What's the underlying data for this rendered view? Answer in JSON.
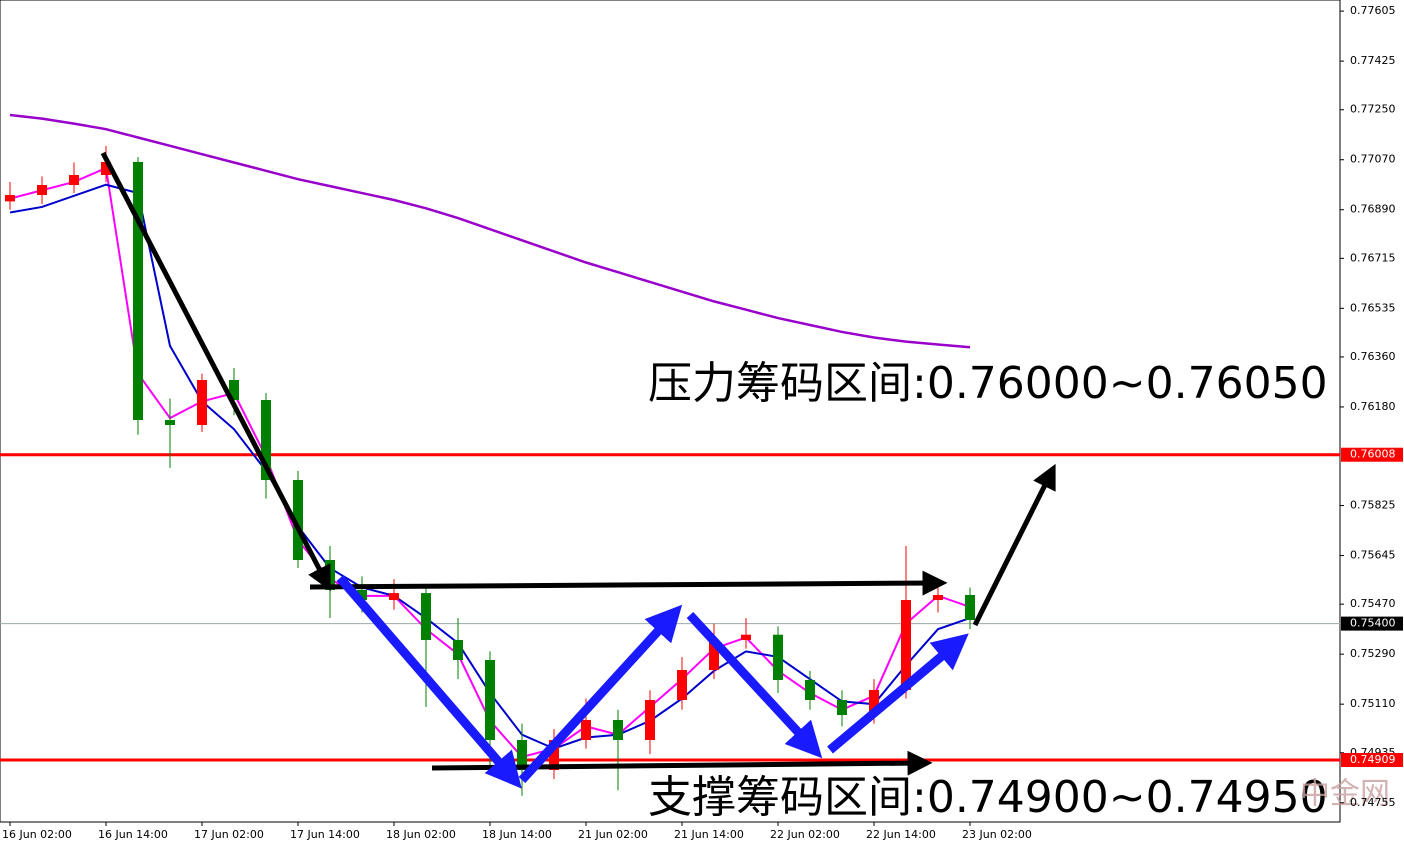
{
  "chart_data": {
    "type": "candlestick",
    "categories": [
      "16 Jun 02:00",
      null,
      null,
      "16 Jun 14:00",
      null,
      null,
      "17 Jun 02:00",
      null,
      null,
      "17 Jun 14:00",
      null,
      null,
      "18 Jun 02:00",
      null,
      null,
      "18 Jun 14:00",
      null,
      null,
      "21 Jun 02:00",
      null,
      null,
      "21 Jun 14:00",
      null,
      null,
      "22 Jun 02:00",
      null,
      null,
      "22 Jun 14:00",
      null,
      null,
      "23 Jun 02:00"
    ],
    "open": [
      0.7692,
      0.76943,
      0.76979,
      0.77015,
      0.77062,
      0.76133,
      0.76115,
      0.76277,
      0.76205,
      0.75917,
      0.75629,
      0.75521,
      0.75485,
      0.7551,
      0.75341,
      0.75269,
      0.74981,
      0.74873,
      0.74981,
      0.75053,
      0.74981,
      0.75125,
      0.75233,
      0.75341,
      0.7536,
      0.75197,
      0.75125,
      0.75071,
      0.75161,
      0.75485,
      0.75503
    ],
    "high": [
      0.7699,
      0.7701,
      0.7706,
      0.7712,
      0.7708,
      0.7621,
      0.763,
      0.7632,
      0.7623,
      0.7595,
      0.7568,
      0.7557,
      0.7556,
      0.7554,
      0.7542,
      0.753,
      0.7504,
      0.7502,
      0.7513,
      0.7509,
      0.7516,
      0.7528,
      0.754,
      0.7542,
      0.7539,
      0.7523,
      0.7516,
      0.752,
      0.7568,
      0.7556,
      0.7553
    ],
    "low": [
      0.7689,
      0.7691,
      0.7695,
      0.7699,
      0.7608,
      0.7596,
      0.7609,
      0.7615,
      0.7585,
      0.756,
      0.7542,
      0.7544,
      0.7545,
      0.751,
      0.752,
      0.7488,
      0.7478,
      0.7484,
      0.7495,
      0.748,
      0.7493,
      0.7509,
      0.752,
      0.7531,
      0.7515,
      0.7509,
      0.7503,
      0.7504,
      0.7513,
      0.7544,
      0.7538
    ],
    "close": [
      0.76943,
      0.76979,
      0.77015,
      0.77062,
      0.76133,
      0.76115,
      0.76277,
      0.76205,
      0.75917,
      0.75629,
      0.75521,
      0.75485,
      0.7551,
      0.75341,
      0.75269,
      0.74981,
      0.74873,
      0.74981,
      0.75053,
      0.74981,
      0.75125,
      0.75233,
      0.75341,
      0.7536,
      0.75197,
      0.75125,
      0.75071,
      0.75161,
      0.75485,
      0.75503,
      0.75413
    ],
    "up_color": "#ff0000",
    "down_color": "#008000",
    "series": [
      {
        "color": "#9900cc",
        "values": [
          0.77231,
          0.77218,
          0.772,
          0.7718,
          0.7715,
          0.7712,
          0.7709,
          0.7706,
          0.7703,
          0.77,
          0.76975,
          0.7695,
          0.76925,
          0.76895,
          0.7686,
          0.7682,
          0.7678,
          0.7674,
          0.767,
          0.76665,
          0.7663,
          0.76595,
          0.7656,
          0.7653,
          0.765,
          0.76475,
          0.7645,
          0.7643,
          0.76415,
          0.76405,
          0.76395
        ]
      },
      {
        "color": "#ff00ff",
        "values": [
          0.7693,
          0.7696,
          0.7699,
          0.7704,
          0.763,
          0.7614,
          0.762,
          0.7623,
          0.76,
          0.757,
          0.7556,
          0.755,
          0.755,
          0.7538,
          0.7529,
          0.7505,
          0.7492,
          0.7495,
          0.7503,
          0.75,
          0.751,
          0.752,
          0.7531,
          0.7535,
          0.7523,
          0.7515,
          0.7509,
          0.7514,
          0.754,
          0.755,
          0.7546
        ]
      },
      {
        "color": "#0000cc",
        "values": [
          0.7688,
          0.769,
          0.7694,
          0.7698,
          0.7695,
          0.764,
          0.762,
          0.761,
          0.7595,
          0.7575,
          0.756,
          0.7553,
          0.755,
          0.7542,
          0.7533,
          0.7515,
          0.75,
          0.7495,
          0.7499,
          0.75,
          0.7505,
          0.7513,
          0.7523,
          0.753,
          0.7528,
          0.752,
          0.7512,
          0.7511,
          0.7525,
          0.7538,
          0.7542
        ]
      }
    ],
    "ylim": [
      0.74603,
      0.77645
    ],
    "yticks": [
      0.77605,
      0.77425,
      {
        "value": 0.7725,
        "label": "0.77250"
      },
      {
        "value": 0.7707,
        "label": "0.77070"
      },
      {
        "value": 0.7689,
        "label": "0.76890"
      },
      0.76715,
      0.76535,
      {
        "value": 0.7636,
        "label": "0.76360"
      },
      {
        "value": 0.7618,
        "label": "0.76180"
      },
      0.75825,
      0.75645,
      {
        "value": 0.7547,
        "label": "0.75470"
      },
      {
        "value": 0.7529,
        "label": "0.75290"
      },
      {
        "value": 0.7511,
        "label": "0.75110"
      },
      0.74935,
      0.74755
    ],
    "hlines": [
      {
        "value": 0.76008,
        "color": "#ff0000"
      },
      {
        "value": 0.74909,
        "color": "#ff0000"
      }
    ],
    "current_price": {
      "value": 0.754,
      "label": "0.75400"
    },
    "annotations": [
      "压力筹码区间:0.76000~0.76050",
      "支撑筹码区间:0.74900~0.74950"
    ],
    "watermark": "中金网"
  }
}
